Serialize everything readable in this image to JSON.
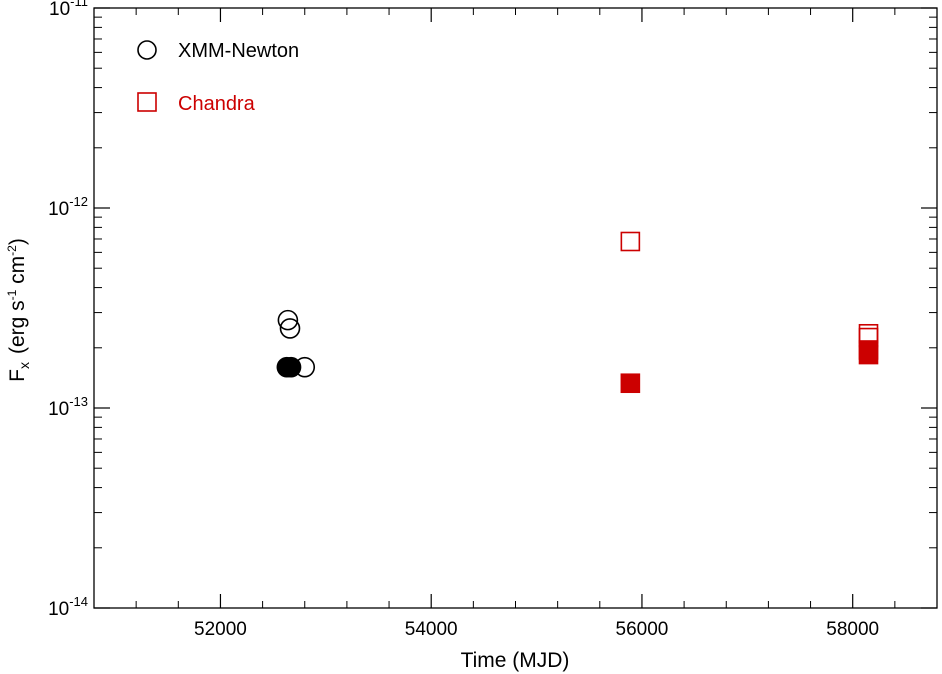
{
  "chart_data": {
    "type": "scatter",
    "xlabel": "Time (MJD)",
    "ylabel": {
      "main": "F",
      "sub": "x",
      "units_open": "(erg s",
      "exp1": "-1",
      "units_mid": " cm",
      "exp2": "-2",
      "units_close": ")"
    },
    "xlim": [
      50800,
      58800
    ],
    "ylim": [
      1e-14,
      1e-11
    ],
    "yscale": "log",
    "x_ticks": [
      52000,
      54000,
      56000,
      58000
    ],
    "x_tick_labels": [
      "52000",
      "54000",
      "56000",
      "58000"
    ],
    "x_minor_step": 400,
    "y_ticks": [
      {
        "value": 1e-11,
        "base": "10",
        "exp": "-11"
      },
      {
        "value": 1e-12,
        "base": "10",
        "exp": "-12"
      },
      {
        "value": 1e-13,
        "base": "10",
        "exp": "-13"
      },
      {
        "value": 1e-14,
        "base": "10",
        "exp": "-14"
      }
    ],
    "grid": false,
    "legend_position": "top-left",
    "series": [
      {
        "name": "XMM-Newton",
        "marker": "circle",
        "color": "#000000",
        "points": [
          {
            "x": 52640,
            "y": 2.75e-13,
            "filled": false
          },
          {
            "x": 52660,
            "y": 2.5e-13,
            "filled": false
          },
          {
            "x": 52630,
            "y": 1.6e-13,
            "filled": true
          },
          {
            "x": 52670,
            "y": 1.6e-13,
            "filled": true
          },
          {
            "x": 52800,
            "y": 1.6e-13,
            "filled": false
          }
        ]
      },
      {
        "name": "Chandra",
        "marker": "square",
        "color": "#cc0000",
        "points": [
          {
            "x": 55890,
            "y": 6.8e-13,
            "filled": false
          },
          {
            "x": 55890,
            "y": 1.33e-13,
            "filled": true
          },
          {
            "x": 58150,
            "y": 2.35e-13,
            "filled": false
          },
          {
            "x": 58150,
            "y": 2.25e-13,
            "filled": false
          },
          {
            "x": 58150,
            "y": 1.95e-13,
            "filled": true
          },
          {
            "x": 58150,
            "y": 1.85e-13,
            "filled": true
          }
        ]
      }
    ]
  }
}
